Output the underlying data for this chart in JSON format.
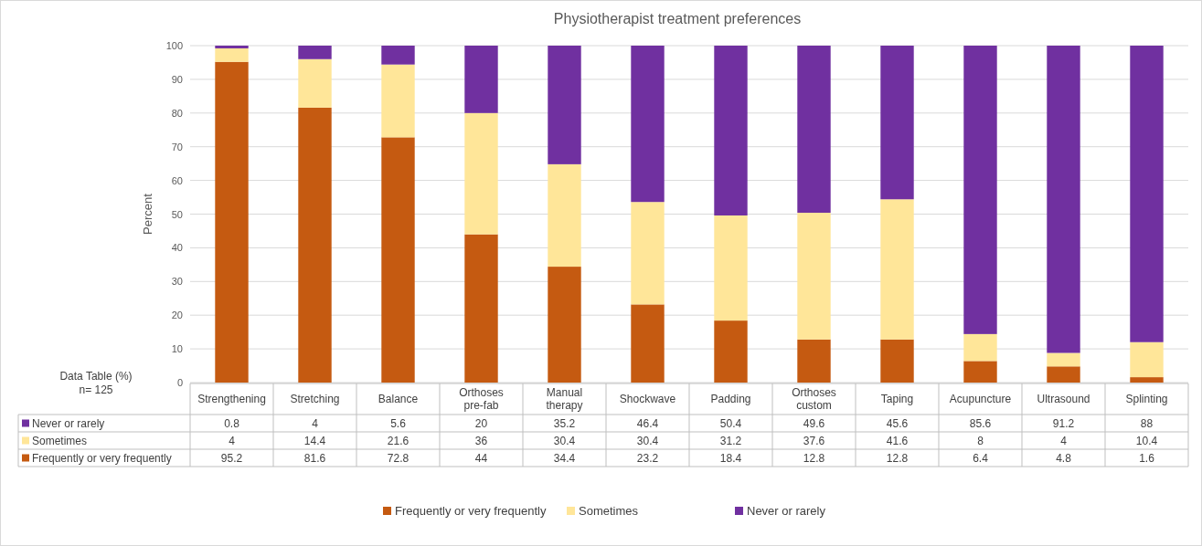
{
  "chart_data": {
    "type": "bar",
    "stacked": true,
    "title": "Physiotherapist treatment preferences",
    "ylabel": "Percent",
    "categories": [
      "Strengthening",
      "Stretching",
      "Balance",
      "Orthoses pre-fab",
      "Manual therapy",
      "Shockwave",
      "Padding",
      "Orthoses custom",
      "Taping",
      "Acupuncture",
      "Ultrasound",
      "Splinting"
    ],
    "series": [
      {
        "name": "Frequently or very frequently",
        "color": "#c55a11",
        "values": [
          95.2,
          81.6,
          72.8,
          44,
          34.4,
          23.2,
          18.4,
          12.8,
          12.8,
          6.4,
          4.8,
          1.6
        ]
      },
      {
        "name": "Sometimes",
        "color": "#ffe699",
        "values": [
          4,
          14.4,
          21.6,
          36,
          30.4,
          30.4,
          31.2,
          37.6,
          41.6,
          8,
          4,
          10.4
        ]
      },
      {
        "name": "Never or rarely",
        "color": "#7030a0",
        "values": [
          0.8,
          4,
          5.6,
          20,
          35.2,
          46.4,
          50.4,
          49.6,
          45.6,
          85.6,
          91.2,
          88
        ]
      }
    ],
    "ylim": [
      0,
      100
    ],
    "yticks": [
      0,
      10,
      20,
      30,
      40,
      50,
      60,
      70,
      80,
      90,
      100
    ],
    "grid": "y",
    "legend": "bottom",
    "data_labels": true,
    "annotations": [
      "Data Table (%)",
      "n= 125"
    ]
  }
}
